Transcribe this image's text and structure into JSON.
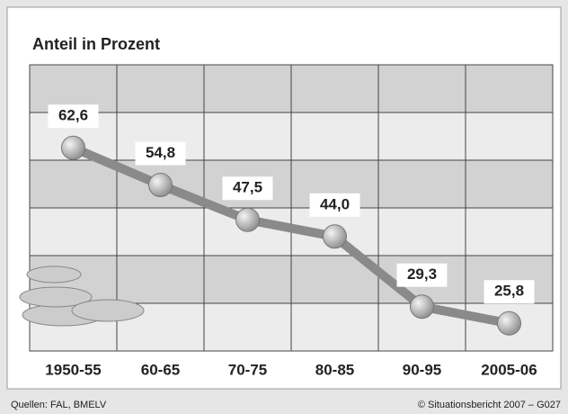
{
  "chart_data": {
    "type": "line",
    "title": "Anteil in Prozent",
    "categories": [
      "1950-55",
      "60-65",
      "70-75",
      "80-85",
      "90-95",
      "2005-06"
    ],
    "values": [
      62.6,
      54.8,
      47.5,
      44.0,
      29.3,
      25.8
    ],
    "value_labels": [
      "62,6",
      "54,8",
      "47,5",
      "44,0",
      "29,3",
      "25,8"
    ],
    "color": "#8a8a8a",
    "ylim": [
      20,
      80
    ],
    "yticks": [
      30,
      40,
      50,
      60,
      70
    ],
    "grid": true,
    "source": "Quellen: FAL, BMELV",
    "credit": "© Situationsbericht 2007 – G027"
  }
}
